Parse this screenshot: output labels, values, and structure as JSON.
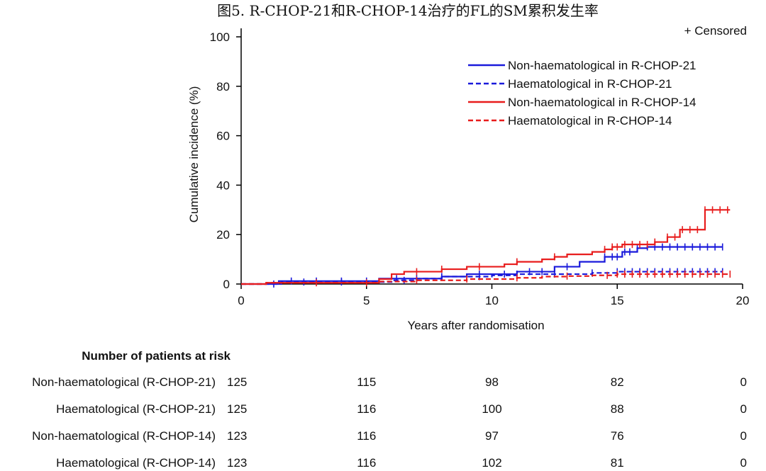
{
  "chart_data": {
    "type": "line",
    "title": "图5. R-CHOP-21和R-CHOP-14治疗的FL的SM累积发生率",
    "xlabel": "Years after randomisation",
    "ylabel": "Cumulative incidence (%)",
    "xlim": [
      0,
      20
    ],
    "ylim": [
      0,
      100
    ],
    "xticks": [
      0,
      5,
      10,
      15,
      20
    ],
    "yticks": [
      0,
      20,
      40,
      60,
      80,
      100
    ],
    "censored_label": "+ Censored",
    "legend_position": "top-right",
    "series": [
      {
        "name": "Non-haematological in R-CHOP-21",
        "color": "#1a1adb",
        "dash": "solid",
        "steps": [
          [
            0,
            0
          ],
          [
            1.5,
            1.2
          ],
          [
            5.5,
            2.2
          ],
          [
            8,
            3
          ],
          [
            9,
            4
          ],
          [
            11,
            5
          ],
          [
            12.5,
            7
          ],
          [
            13.5,
            9
          ],
          [
            14.5,
            11
          ],
          [
            15.2,
            13
          ],
          [
            15.8,
            14.5
          ],
          [
            16.2,
            15
          ],
          [
            19.2,
            15
          ]
        ],
        "censor_x": [
          1.3,
          2,
          3,
          4,
          5,
          6.2,
          7,
          8,
          9.5,
          10.5,
          11.5,
          12,
          13,
          14.5,
          14.8,
          15,
          15.3,
          15.5,
          15.8,
          16.2,
          16.5,
          16.8,
          17.1,
          17.4,
          17.7,
          18,
          18.3,
          18.6,
          18.9,
          19.2
        ]
      },
      {
        "name": "Haematological in R-CHOP-21",
        "color": "#1a1adb",
        "dash": "dashed",
        "steps": [
          [
            0,
            0
          ],
          [
            1.6,
            0.8
          ],
          [
            6,
            1.5
          ],
          [
            7,
            2.2
          ],
          [
            8,
            3
          ],
          [
            10,
            3.5
          ],
          [
            11,
            4
          ],
          [
            14,
            4.5
          ],
          [
            15,
            5
          ],
          [
            19.2,
            5
          ]
        ],
        "censor_x": [
          2.5,
          4,
          6.5,
          8,
          9.5,
          11,
          12.5,
          14,
          15,
          15.3,
          15.6,
          15.9,
          16.2,
          16.5,
          16.8,
          17.1,
          17.4,
          17.7,
          18,
          18.3,
          18.6,
          18.9,
          19.2
        ]
      },
      {
        "name": "Non-haematological in R-CHOP-14",
        "color": "#e81c1c",
        "dash": "solid",
        "steps": [
          [
            0,
            0
          ],
          [
            1,
            0.5
          ],
          [
            5.5,
            2
          ],
          [
            6,
            4
          ],
          [
            6.5,
            5
          ],
          [
            8,
            6
          ],
          [
            9,
            7
          ],
          [
            10.5,
            8
          ],
          [
            11,
            9
          ],
          [
            12,
            10
          ],
          [
            12.5,
            11
          ],
          [
            13,
            12
          ],
          [
            14,
            13
          ],
          [
            14.5,
            14
          ],
          [
            14.8,
            15
          ],
          [
            15.2,
            16
          ],
          [
            16.5,
            17
          ],
          [
            17,
            19
          ],
          [
            17.5,
            22
          ],
          [
            18.5,
            30
          ],
          [
            19.5,
            30
          ]
        ],
        "censor_x": [
          7,
          8,
          9.5,
          11,
          12.5,
          14.5,
          14.8,
          15,
          15.3,
          15.6,
          15.9,
          16.2,
          16.5,
          17,
          17.3,
          17.6,
          17.9,
          18.2,
          18.5,
          18.8,
          19.1,
          19.4
        ]
      },
      {
        "name": "Haematological in R-CHOP-14",
        "color": "#e81c1c",
        "dash": "dashed",
        "steps": [
          [
            0,
            0
          ],
          [
            1,
            0.5
          ],
          [
            5.5,
            1
          ],
          [
            7,
            1.5
          ],
          [
            9,
            2
          ],
          [
            11,
            2.5
          ],
          [
            12,
            3
          ],
          [
            13,
            3.2
          ],
          [
            14,
            3.5
          ],
          [
            15,
            4
          ],
          [
            19.5,
            4
          ]
        ],
        "censor_x": [
          3,
          5,
          7,
          9,
          11,
          13,
          14.6,
          15,
          15.3,
          15.6,
          15.9,
          16.2,
          16.5,
          16.8,
          17.1,
          17.4,
          17.7,
          18,
          18.3,
          18.6,
          18.9,
          19.2,
          19.5
        ]
      }
    ],
    "risk_table": {
      "header": "Number of patients at risk",
      "rows": [
        {
          "label": "Non-haematological (R-CHOP-21)",
          "values": [
            "125",
            "115",
            "98",
            "82",
            "0"
          ]
        },
        {
          "label": "Haematological (R-CHOP-21)",
          "values": [
            "125",
            "116",
            "100",
            "88",
            "0"
          ]
        },
        {
          "label": "Non-haematological (R-CHOP-14)",
          "values": [
            "123",
            "116",
            "97",
            "76",
            "0"
          ]
        },
        {
          "label": "Haematological (R-CHOP-14)",
          "values": [
            "123",
            "116",
            "102",
            "81",
            "0"
          ]
        }
      ]
    }
  }
}
